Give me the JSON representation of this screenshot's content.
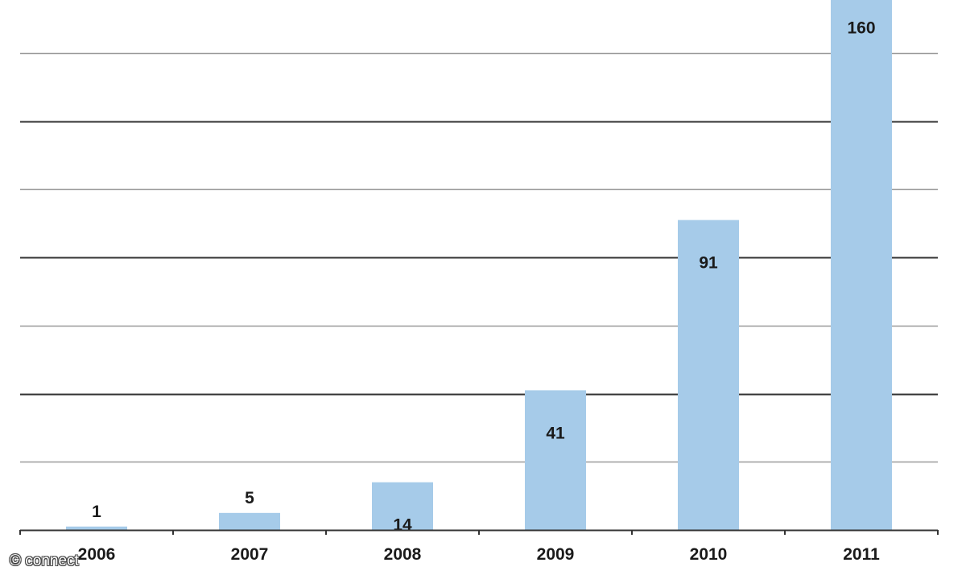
{
  "chart_data": {
    "type": "bar",
    "categories": [
      "2006",
      "2007",
      "2008",
      "2009",
      "2010",
      "2011"
    ],
    "values": [
      1,
      5,
      14,
      41,
      91,
      160
    ],
    "value_labels": [
      "1",
      "5",
      "14",
      "41",
      "91",
      "160"
    ],
    "ylim": [
      0,
      155
    ],
    "y_gridline_step": 20,
    "grid": true,
    "y_tick_labels_shown": false,
    "bar_color": "#a6cbe9",
    "gridline_colors": [
      "#999999",
      "#333333"
    ]
  },
  "watermark": {
    "text": "© connect"
  }
}
